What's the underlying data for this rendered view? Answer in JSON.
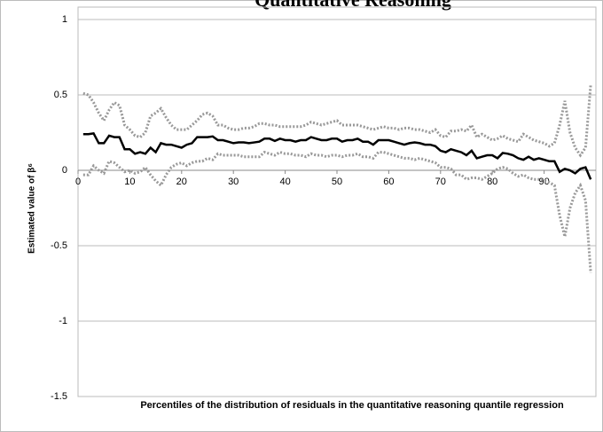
{
  "chart_data": {
    "type": "line",
    "title": "Quantitative Reasoning",
    "xlabel": "Percentiles of the distribution of residuals in the quantitative reasoning quantile regression",
    "ylabel": "Estimated value of β⁶",
    "x": [
      1,
      2,
      3,
      4,
      5,
      6,
      7,
      8,
      9,
      10,
      11,
      12,
      13,
      14,
      15,
      16,
      17,
      18,
      19,
      20,
      21,
      22,
      23,
      24,
      25,
      26,
      27,
      28,
      29,
      30,
      31,
      32,
      33,
      34,
      35,
      36,
      37,
      38,
      39,
      40,
      41,
      42,
      43,
      44,
      45,
      46,
      47,
      48,
      49,
      50,
      51,
      52,
      53,
      54,
      55,
      56,
      57,
      58,
      59,
      60,
      61,
      62,
      63,
      64,
      65,
      66,
      67,
      68,
      69,
      70,
      71,
      72,
      73,
      74,
      75,
      76,
      77,
      78,
      79,
      80,
      81,
      82,
      83,
      84,
      85,
      86,
      87,
      88,
      89,
      90,
      91,
      92,
      93,
      94,
      95,
      96,
      97,
      98,
      99
    ],
    "series": [
      {
        "color": "#000000",
        "dash": "solid",
        "values": [
          0.24,
          0.24,
          0.245,
          0.18,
          0.18,
          0.23,
          0.22,
          0.22,
          0.14,
          0.14,
          0.11,
          0.12,
          0.11,
          0.15,
          0.12,
          0.18,
          0.17,
          0.17,
          0.16,
          0.15,
          0.17,
          0.18,
          0.22,
          0.22,
          0.22,
          0.225,
          0.2,
          0.2,
          0.19,
          0.18,
          0.185,
          0.185,
          0.18,
          0.185,
          0.19,
          0.21,
          0.21,
          0.195,
          0.21,
          0.2,
          0.2,
          0.19,
          0.2,
          0.2,
          0.22,
          0.21,
          0.2,
          0.2,
          0.21,
          0.21,
          0.19,
          0.2,
          0.2,
          0.21,
          0.19,
          0.19,
          0.17,
          0.2,
          0.2,
          0.2,
          0.19,
          0.18,
          0.17,
          0.18,
          0.185,
          0.18,
          0.17,
          0.17,
          0.16,
          0.13,
          0.12,
          0.14,
          0.13,
          0.12,
          0.1,
          0.13,
          0.08,
          0.09,
          0.1,
          0.1,
          0.08,
          0.115,
          0.11,
          0.1,
          0.08,
          0.07,
          0.09,
          0.07,
          0.08,
          0.07,
          0.06,
          0.06,
          -0.01,
          0.01,
          0,
          -0.02,
          0.01,
          0.02,
          -0.06
        ]
      },
      {
        "color": "#999999",
        "dash": "dotted",
        "values": [
          0.51,
          0.5,
          0.45,
          0.38,
          0.33,
          0.4,
          0.45,
          0.43,
          0.3,
          0.27,
          0.23,
          0.22,
          0.25,
          0.36,
          0.38,
          0.41,
          0.35,
          0.3,
          0.27,
          0.27,
          0.27,
          0.3,
          0.33,
          0.37,
          0.38,
          0.36,
          0.3,
          0.3,
          0.28,
          0.27,
          0.27,
          0.28,
          0.28,
          0.29,
          0.31,
          0.31,
          0.3,
          0.3,
          0.29,
          0.29,
          0.29,
          0.29,
          0.29,
          0.3,
          0.32,
          0.31,
          0.3,
          0.31,
          0.32,
          0.33,
          0.3,
          0.3,
          0.3,
          0.3,
          0.29,
          0.28,
          0.27,
          0.28,
          0.29,
          0.28,
          0.28,
          0.27,
          0.28,
          0.28,
          0.27,
          0.27,
          0.26,
          0.25,
          0.27,
          0.23,
          0.22,
          0.26,
          0.26,
          0.27,
          0.26,
          0.3,
          0.22,
          0.24,
          0.22,
          0.2,
          0.21,
          0.23,
          0.21,
          0.2,
          0.19,
          0.24,
          0.22,
          0.2,
          0.19,
          0.18,
          0.16,
          0.18,
          0.3,
          0.46,
          0.25,
          0.15,
          0.1,
          0.15,
          0.57
        ]
      },
      {
        "color": "#999999",
        "dash": "dotted",
        "values": [
          -0.03,
          -0.03,
          0.03,
          0,
          -0.02,
          0.06,
          0.05,
          0.02,
          -0.01,
          0,
          -0.02,
          -0.01,
          0.02,
          -0.03,
          -0.07,
          -0.1,
          -0.03,
          0.02,
          0.04,
          0.05,
          0.03,
          0.05,
          0.06,
          0.06,
          0.08,
          0.07,
          0.11,
          0.1,
          0.1,
          0.1,
          0.1,
          0.09,
          0.09,
          0.09,
          0.09,
          0.12,
          0.11,
          0.1,
          0.12,
          0.11,
          0.11,
          0.1,
          0.1,
          0.09,
          0.11,
          0.1,
          0.1,
          0.09,
          0.1,
          0.1,
          0.09,
          0.1,
          0.1,
          0.11,
          0.09,
          0.09,
          0.08,
          0.12,
          0.12,
          0.11,
          0.1,
          0.09,
          0.08,
          0.08,
          0.07,
          0.08,
          0.07,
          0.06,
          0.05,
          0.02,
          0.02,
          0.01,
          -0.03,
          -0.03,
          -0.06,
          -0.05,
          -0.05,
          -0.06,
          -0.04,
          -0.02,
          0.01,
          0.02,
          0.01,
          -0.02,
          -0.04,
          -0.03,
          -0.05,
          -0.06,
          -0.06,
          -0.07,
          -0.08,
          -0.1,
          -0.3,
          -0.44,
          -0.25,
          -0.15,
          -0.1,
          -0.2,
          -0.68
        ]
      }
    ],
    "xlim": [
      0,
      100
    ],
    "xticks": [
      0,
      10,
      20,
      30,
      40,
      50,
      60,
      70,
      80,
      90
    ],
    "ylim": [
      -1.5,
      1
    ],
    "yticks": [
      -1.5,
      -1,
      -0.5,
      0,
      0.5,
      1
    ],
    "grid": true
  }
}
